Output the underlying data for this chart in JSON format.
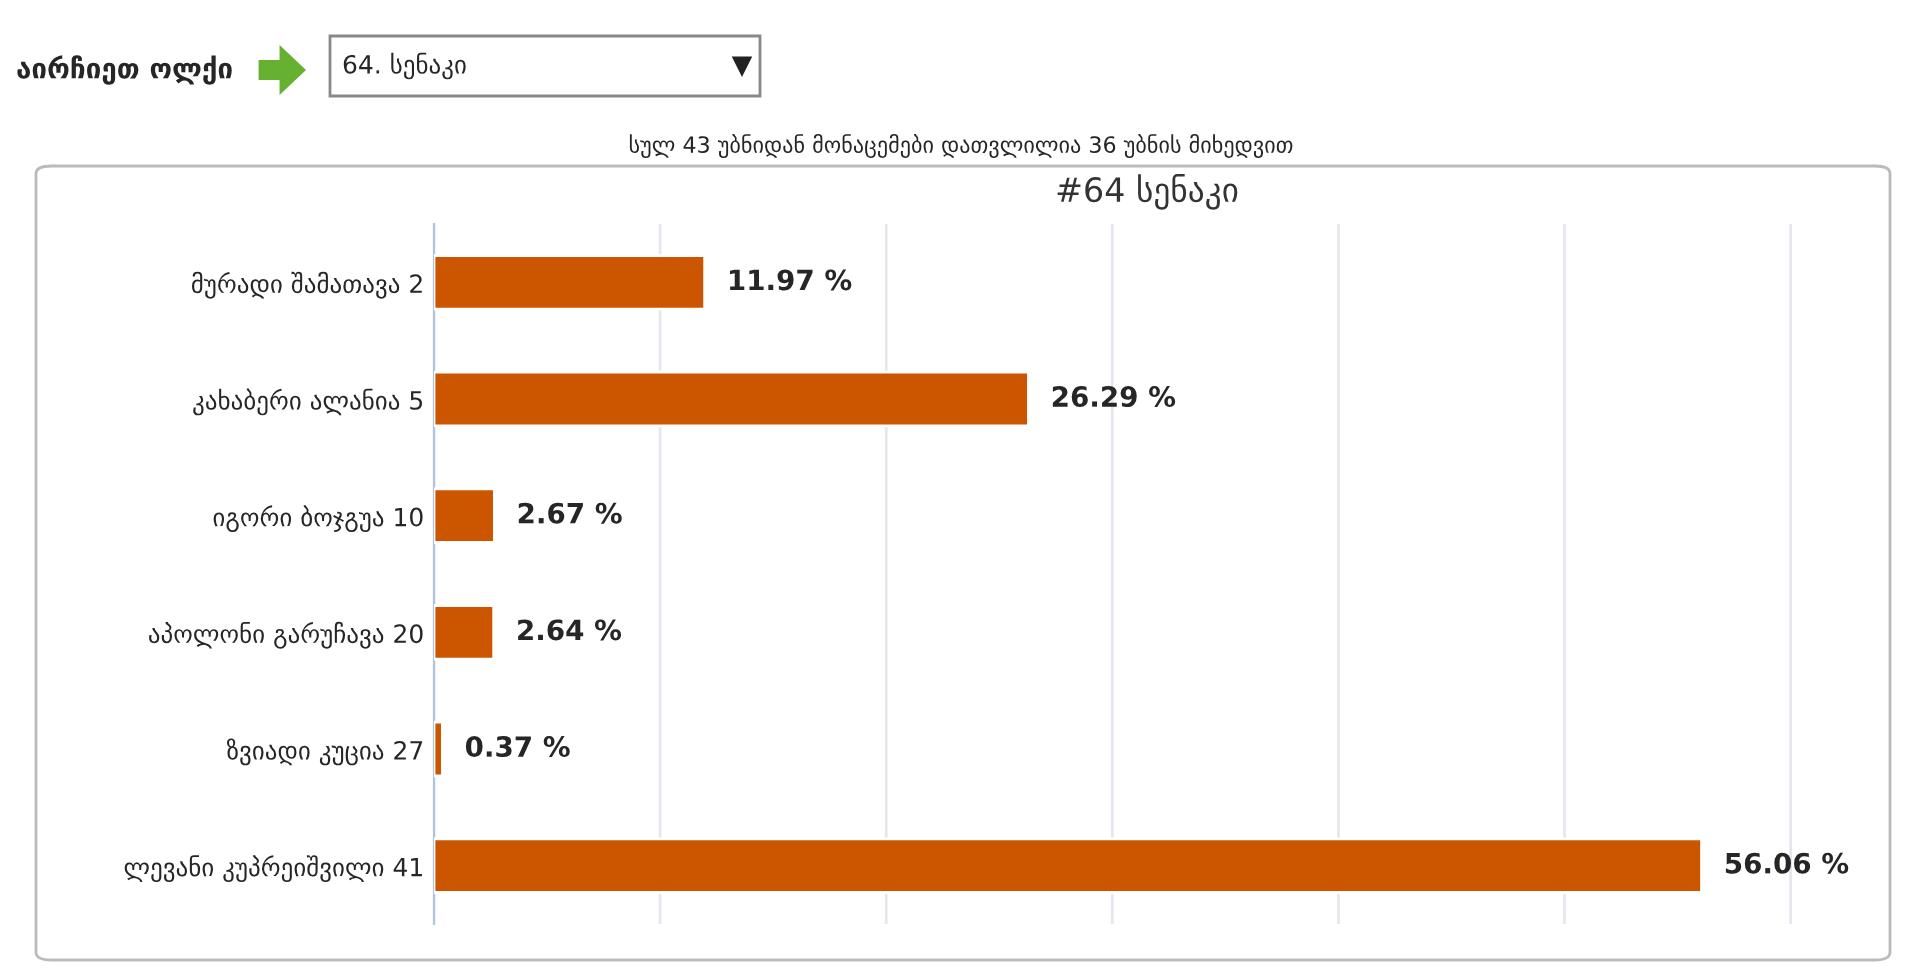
{
  "chart_data": {
    "type": "bar",
    "orientation": "horizontal",
    "title": "#64 სენაკი",
    "subtitle": "სულ 43 უბნიდან მონაცემები დათვლილია 36 უბნის მიხედვით",
    "annotations": [
      "აირჩიეთ ოლქი",
      "64. სენაკი"
    ],
    "categories": [
      "მურადი შამათავა 2",
      "კახაბერი ალანია 5",
      "იგორი ბოჯგუა 10",
      "აპოლონი გარუჩავა 20",
      "ზვიადი კუცია 27",
      "ლევანი კუპრეიშვილი 41"
    ],
    "values": [
      11.97,
      26.29,
      2.67,
      2.64,
      0.37,
      56.06
    ],
    "value_labels": [
      "11.97 %",
      "26.29 %",
      "2.67 %",
      "2.64 %",
      "0.37 %",
      "56.06 %"
    ],
    "color": "#cc5500",
    "grid": "x",
    "legend": false,
    "tick_labels": "y"
  }
}
